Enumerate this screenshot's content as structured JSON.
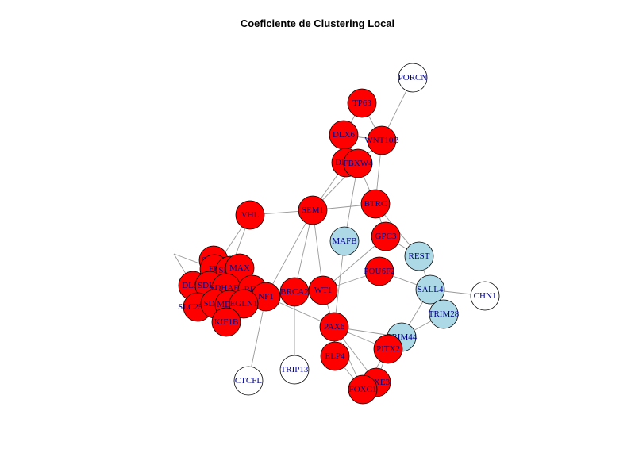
{
  "title": "Coeficiente de Clustering Local",
  "style": {
    "edge_color": "#999999",
    "node_stroke": "#000000",
    "label_color": "#00008B",
    "fill_high": "#FF0000",
    "fill_mid": "#ADD8E6",
    "fill_low": "#FFFFFF"
  },
  "nodes": [
    {
      "id": "PORCN",
      "group": "low"
    },
    {
      "id": "TP63",
      "group": "high"
    },
    {
      "id": "DLX6",
      "group": "high"
    },
    {
      "id": "WNT10B",
      "group": "high"
    },
    {
      "id": "DLX5",
      "group": "high"
    },
    {
      "id": "FBXW4",
      "group": "high"
    },
    {
      "id": "SEM1",
      "group": "high"
    },
    {
      "id": "BTRC",
      "group": "high"
    },
    {
      "id": "VHL",
      "group": "high"
    },
    {
      "id": "MAFB",
      "group": "mid"
    },
    {
      "id": "GPC3",
      "group": "high"
    },
    {
      "id": "REST",
      "group": "mid"
    },
    {
      "id": "SDHD",
      "group": "high"
    },
    {
      "id": "FH",
      "group": "high"
    },
    {
      "id": "SDHB",
      "group": "high"
    },
    {
      "id": "MAX",
      "group": "high"
    },
    {
      "id": "POU6F2",
      "group": "high"
    },
    {
      "id": "DLST",
      "group": "high"
    },
    {
      "id": "SDHA",
      "group": "high"
    },
    {
      "id": "SDHAF2",
      "group": "high"
    },
    {
      "id": "RET",
      "group": "high"
    },
    {
      "id": "NF1",
      "group": "high"
    },
    {
      "id": "BRCA2",
      "group": "high"
    },
    {
      "id": "WT1",
      "group": "high"
    },
    {
      "id": "SALL4",
      "group": "mid"
    },
    {
      "id": "CHN1",
      "group": "low"
    },
    {
      "id": "SLC25A11",
      "group": "high"
    },
    {
      "id": "SDHC",
      "group": "high"
    },
    {
      "id": "MDH2",
      "group": "high"
    },
    {
      "id": "EGLN1",
      "group": "high"
    },
    {
      "id": "TRIM28",
      "group": "mid"
    },
    {
      "id": "KIF1B",
      "group": "high"
    },
    {
      "id": "PAX6",
      "group": "high"
    },
    {
      "id": "TRIM44",
      "group": "mid"
    },
    {
      "id": "PITX2",
      "group": "high"
    },
    {
      "id": "ELP4",
      "group": "high"
    },
    {
      "id": "TRIP13",
      "group": "low"
    },
    {
      "id": "CTCFL",
      "group": "low"
    },
    {
      "id": "FOXE3",
      "group": "high"
    },
    {
      "id": "FOXC1",
      "group": "high"
    }
  ],
  "edges": [
    [
      "PORCN",
      "WNT10B"
    ],
    [
      "TP63",
      "DLX6"
    ],
    [
      "TP63",
      "WNT10B"
    ],
    [
      "DLX6",
      "WNT10B"
    ],
    [
      "DLX6",
      "DLX5"
    ],
    [
      "DLX6",
      "FBXW4"
    ],
    [
      "WNT10B",
      "FBXW4"
    ],
    [
      "WNT10B",
      "BTRC"
    ],
    [
      "DLX5",
      "FBXW4"
    ],
    [
      "FBXW4",
      "SEM1"
    ],
    [
      "FBXW4",
      "BTRC"
    ],
    [
      "DLX5",
      "SEM1"
    ],
    [
      "FBXW4",
      "MAFB"
    ],
    [
      "SEM1",
      "BTRC"
    ],
    [
      "SEM1",
      "VHL"
    ],
    [
      "SEM1",
      "NF1"
    ],
    [
      "SEM1",
      "BRCA2"
    ],
    [
      "SEM1",
      "WT1"
    ],
    [
      "BTRC",
      "GPC3"
    ],
    [
      "BTRC",
      "REST"
    ],
    [
      "GPC3",
      "REST"
    ],
    [
      "GPC3",
      "WT1"
    ],
    [
      "REST",
      "SALL4"
    ],
    [
      "SALL4",
      "CHN1"
    ],
    [
      "SALL4",
      "TRIM28"
    ],
    [
      "SALL4",
      "TRIM44"
    ],
    [
      "SALL4",
      "POU6F2"
    ],
    [
      "TRIM28",
      "TRIM44"
    ],
    [
      "MAFB",
      "PAX6"
    ],
    [
      "VHL",
      "FH"
    ],
    [
      "VHL",
      "SDHB"
    ],
    [
      "FH",
      "SDHD"
    ],
    [
      "FH",
      "MAX"
    ],
    [
      "SDHD",
      "SDHB"
    ],
    [
      "SDHD",
      "DLST"
    ],
    [
      "SDHD",
      "SDHA"
    ],
    [
      "SDHB",
      "MAX"
    ],
    [
      "SDHB",
      "SDHA"
    ],
    [
      "SDHB",
      "SDHAF2"
    ],
    [
      "SDHA",
      "SDHAF2"
    ],
    [
      "SDHA",
      "SDHC"
    ],
    [
      "SDHAF2",
      "RET"
    ],
    [
      "SDHAF2",
      "EGLN1"
    ],
    [
      "RET",
      "NF1"
    ],
    [
      "RET",
      "EGLN1"
    ],
    [
      "MAX",
      "RET"
    ],
    [
      "MAX",
      "SDHAF2"
    ],
    [
      "SLC25A11",
      "MDH2"
    ],
    [
      "SLC25A11",
      "SDHC"
    ],
    [
      "MDH2",
      "SDHC"
    ],
    [
      "MDH2",
      "KIF1B"
    ],
    [
      "SDHC",
      "KIF1B"
    ],
    [
      "EGLN1",
      "KIF1B"
    ],
    [
      "EGLN1",
      "NF1"
    ],
    [
      "DLST",
      "SLC25A11"
    ],
    [
      "DLST",
      "MDH2"
    ],
    [
      "NF1",
      "CTCFL"
    ],
    [
      "NF1",
      "PAX6"
    ],
    [
      "BRCA2",
      "TRIP13"
    ],
    [
      "WT1",
      "PAX6"
    ],
    [
      "WT1",
      "POU6F2"
    ],
    [
      "PAX6",
      "ELP4"
    ],
    [
      "PAX6",
      "PITX2"
    ],
    [
      "PAX6",
      "TRIM44"
    ],
    [
      "PAX6",
      "FOXE3"
    ],
    [
      "PAX6",
      "FOXC1"
    ],
    [
      "PITX2",
      "FOXE3"
    ],
    [
      "PITX2",
      "FOXC1"
    ],
    [
      "PITX2",
      "TRIM44"
    ],
    [
      "ELP4",
      "FOXC1"
    ],
    [
      "FOXE3",
      "FOXC1"
    ],
    [
      "LDHB",
      "FH"
    ],
    [
      "LDHB",
      "DLST"
    ]
  ]
}
